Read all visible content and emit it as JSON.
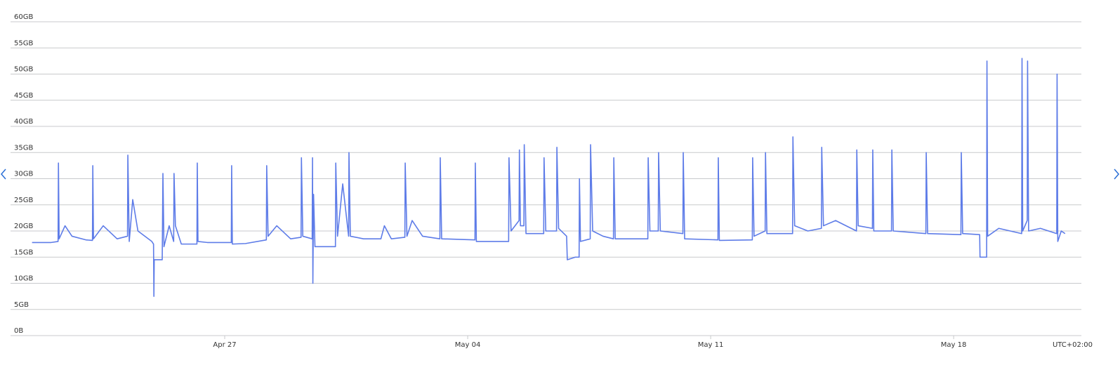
{
  "chart_data": {
    "type": "line",
    "color": "#5e7ce8",
    "grid": true,
    "timezone": "UTC+02:00",
    "xlim": [
      20.83,
      51.68
    ],
    "ylim": [
      0,
      60
    ],
    "xticks": [
      {
        "value": 27,
        "label": "Apr 27"
      },
      {
        "value": 34,
        "label": "May 04"
      },
      {
        "value": 41,
        "label": "May 11"
      },
      {
        "value": 48,
        "label": "May 18"
      }
    ],
    "yticks": [
      {
        "value": 0,
        "label": "0B"
      },
      {
        "value": 5,
        "label": "5GB"
      },
      {
        "value": 10,
        "label": "10GB"
      },
      {
        "value": 15,
        "label": "15GB"
      },
      {
        "value": 20,
        "label": "20GB"
      },
      {
        "value": 25,
        "label": "25GB"
      },
      {
        "value": 30,
        "label": "30GB"
      },
      {
        "value": 35,
        "label": "35GB"
      },
      {
        "value": 40,
        "label": "40GB"
      },
      {
        "value": 45,
        "label": "45GB"
      },
      {
        "value": 50,
        "label": "50GB"
      },
      {
        "value": 55,
        "label": "55GB"
      },
      {
        "value": 60,
        "label": "60GB"
      }
    ],
    "x": [
      21.45,
      22.0,
      22.2,
      22.21,
      22.23,
      22.4,
      22.6,
      23.0,
      23.19,
      23.2,
      23.22,
      23.5,
      23.9,
      24.2,
      24.21,
      24.25,
      24.35,
      24.5,
      24.9,
      24.95,
      24.96,
      24.97,
      25.2,
      25.22,
      25.25,
      25.4,
      25.53,
      25.54,
      25.58,
      25.75,
      26.2,
      26.21,
      26.23,
      26.5,
      27.19,
      27.2,
      27.22,
      27.6,
      28.2,
      28.21,
      28.25,
      28.5,
      28.9,
      29.2,
      29.21,
      29.25,
      29.52,
      29.53,
      29.54,
      29.56,
      29.6,
      30.19,
      30.2,
      30.25,
      30.4,
      30.57,
      30.58,
      30.62,
      31.0,
      31.5,
      31.6,
      31.8,
      32.19,
      32.2,
      32.25,
      32.4,
      32.7,
      33.2,
      33.21,
      33.25,
      34.21,
      34.22,
      34.25,
      35.18,
      35.19,
      35.25,
      35.48,
      35.49,
      35.52,
      35.62,
      35.63,
      35.68,
      36.19,
      36.2,
      36.25,
      36.56,
      36.57,
      36.62,
      36.85,
      36.87,
      37.1,
      37.21,
      37.22,
      37.25,
      37.53,
      37.54,
      37.6,
      37.9,
      38.2,
      38.21,
      38.25,
      39.19,
      39.2,
      39.25,
      39.49,
      39.5,
      39.55,
      40.2,
      40.21,
      40.25,
      41.21,
      41.22,
      41.25,
      42.2,
      42.21,
      42.25,
      42.57,
      42.58,
      42.62,
      43.36,
      43.37,
      43.42,
      43.8,
      44.19,
      44.2,
      44.25,
      44.6,
      45.2,
      45.21,
      45.25,
      45.66,
      45.67,
      45.7,
      46.21,
      46.22,
      46.26,
      47.2,
      47.21,
      47.25,
      48.21,
      48.22,
      48.26,
      48.75,
      48.76,
      48.95,
      48.96,
      48.98,
      49.3,
      49.96,
      49.97,
      49.99,
      50.12,
      50.13,
      50.16,
      50.5,
      50.97,
      50.98,
      51.0,
      51.1,
      51.21
    ],
    "values": [
      17.8,
      17.8,
      18.0,
      33,
      18.5,
      21,
      19,
      18.3,
      18.2,
      32.5,
      18.5,
      21,
      18.5,
      19,
      34.5,
      18,
      26,
      20,
      18,
      17.5,
      7.5,
      14.5,
      14.5,
      31,
      17,
      21,
      18,
      31,
      21,
      17.5,
      17.5,
      33,
      18,
      17.8,
      17.8,
      32.5,
      17.5,
      17.6,
      18.3,
      32.5,
      19,
      21,
      18.5,
      18.8,
      34,
      19,
      18.5,
      34,
      10,
      27,
      17,
      17,
      33,
      19,
      29,
      19,
      35,
      19,
      18.5,
      18.5,
      21,
      18.5,
      18.8,
      33,
      19,
      22,
      19,
      18.5,
      34,
      18.5,
      18.3,
      33,
      18,
      18,
      34,
      20,
      22,
      35.5,
      21,
      21,
      36.5,
      19.5,
      19.5,
      34,
      20,
      20,
      36,
      20.5,
      19,
      14.5,
      15,
      15,
      30,
      18,
      18.5,
      36.5,
      20,
      19,
      18.5,
      34,
      18.5,
      18.5,
      34,
      20,
      20,
      35,
      20,
      19.5,
      35,
      18.5,
      18.3,
      34,
      18.2,
      18.3,
      34,
      19,
      20,
      35,
      19.5,
      19.5,
      38,
      21,
      20,
      20.5,
      36,
      21,
      22,
      20,
      35.5,
      21,
      20.5,
      35.5,
      20,
      20,
      35.5,
      20,
      19.5,
      35,
      19.5,
      19.3,
      35,
      19.5,
      19.3,
      15,
      15,
      52.5,
      19,
      20.5,
      19.5,
      53,
      20,
      22,
      52.5,
      20,
      20.5,
      19.5,
      50,
      18,
      20,
      19.5
    ]
  }
}
